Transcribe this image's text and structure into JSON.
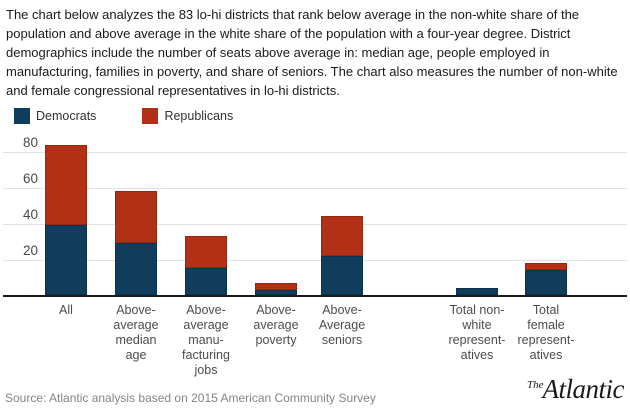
{
  "intro": {
    "text": "The chart below analyzes the 83 lo-hi districts that rank below average in the non-white share of the population and above average in the white share of the population with a four-year degree. District demographics include the number of seats above average in: median age, people employed in manufacturing, families in poverty, and share of seniors. The chart also measures the number of non-white and female congressional representatives in lo-hi districts."
  },
  "legend": {
    "items": [
      {
        "label": "Democrats",
        "color": "#113d5d"
      },
      {
        "label": "Republicans",
        "color": "#b23016"
      }
    ]
  },
  "chart_data": {
    "type": "bar",
    "stacked": true,
    "title": "",
    "xlabel": "",
    "ylabel": "",
    "categories": [
      "All",
      "Above-average median age",
      "Above-average manufacturing jobs",
      "Above-average poverty",
      "Above-Average seniors",
      "Total non-white representatives",
      "Total female representatives"
    ],
    "category_display_lines": [
      [
        "All"
      ],
      [
        "Above-",
        "average",
        "median",
        "age"
      ],
      [
        "Above-",
        "average",
        "manu-",
        "facturing",
        "jobs"
      ],
      [
        "Above-",
        "average",
        "poverty"
      ],
      [
        "Above-",
        "Average",
        "seniors"
      ],
      [
        "Total non-",
        "white",
        "represent-",
        "atives"
      ],
      [
        "Total",
        "female",
        "represent-",
        "atives"
      ]
    ],
    "series": [
      {
        "name": "Democrats",
        "color": "#113d5d",
        "values": [
          39,
          29,
          15,
          3,
          22,
          4,
          14
        ]
      },
      {
        "name": "Republicans",
        "color": "#b23016",
        "values": [
          44,
          29,
          18,
          4,
          22,
          0,
          4
        ]
      }
    ],
    "totals": [
      83,
      58,
      33,
      7,
      44,
      4,
      18
    ],
    "y_ticks": [
      20,
      40,
      60,
      80
    ],
    "ylim": [
      0,
      88
    ],
    "grid": true,
    "legend_position": "top-left"
  },
  "footer": {
    "source": "Source: Atlantic analysis based on 2015 American Community Survey",
    "brand_the": "The",
    "brand_name": "Atlantic"
  }
}
